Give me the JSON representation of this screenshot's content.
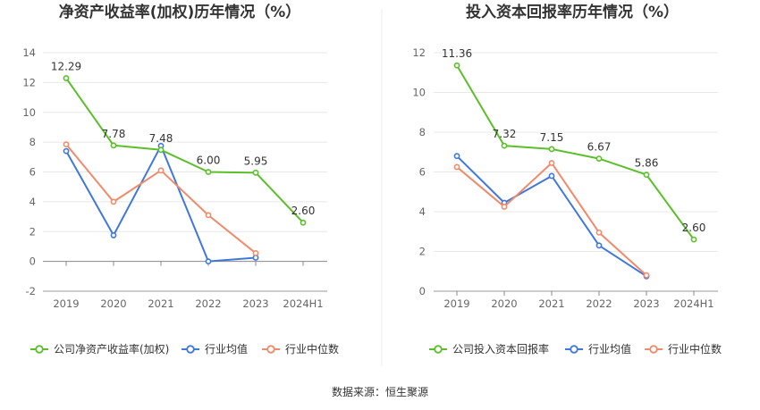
{
  "footer": {
    "source": "数据来源：恒生聚源"
  },
  "colors": {
    "company": "#5bbf2a",
    "avg": "#3f78dc",
    "median": "#f08a6a"
  },
  "chart_data": [
    {
      "type": "line",
      "title": "净资产收益率(加权)历年情况（%）",
      "categories": [
        "2019",
        "2020",
        "2021",
        "2022",
        "2023",
        "2024H1"
      ],
      "ylim": [
        -2,
        14
      ],
      "yticks": [
        -2,
        0,
        2,
        4,
        6,
        8,
        10,
        12,
        14
      ],
      "grid": true,
      "legend_position": "bottom",
      "series": [
        {
          "name": "公司净资产收益率(加权)",
          "role": "company",
          "values": [
            12.29,
            7.78,
            7.48,
            6.0,
            5.95,
            2.6
          ],
          "labels": [
            "12.29",
            "7.78",
            "7.48",
            "6.00",
            "5.95",
            "2.60"
          ]
        },
        {
          "name": "行业均值",
          "role": "avg",
          "values": [
            7.4,
            1.75,
            7.75,
            0.0,
            0.25,
            null
          ]
        },
        {
          "name": "行业中位数",
          "role": "median",
          "values": [
            7.85,
            4.0,
            6.1,
            3.1,
            0.55,
            null
          ]
        }
      ]
    },
    {
      "type": "line",
      "title": "投入资本回报率历年情况（%）",
      "categories": [
        "2019",
        "2020",
        "2021",
        "2022",
        "2023",
        "2024H1"
      ],
      "ylim": [
        0,
        12
      ],
      "yticks": [
        0,
        2,
        4,
        6,
        8,
        10,
        12
      ],
      "grid": true,
      "legend_position": "bottom",
      "series": [
        {
          "name": "公司投入资本回报率",
          "role": "company",
          "values": [
            11.36,
            7.32,
            7.15,
            6.67,
            5.86,
            2.6
          ],
          "labels": [
            "11.36",
            "7.32",
            "7.15",
            "6.67",
            "5.86",
            "2.60"
          ]
        },
        {
          "name": "行业均值",
          "role": "avg",
          "values": [
            6.8,
            4.45,
            5.8,
            2.3,
            0.75,
            null
          ]
        },
        {
          "name": "行业中位数",
          "role": "median",
          "values": [
            6.25,
            4.25,
            6.45,
            2.95,
            0.8,
            null
          ]
        }
      ]
    }
  ]
}
